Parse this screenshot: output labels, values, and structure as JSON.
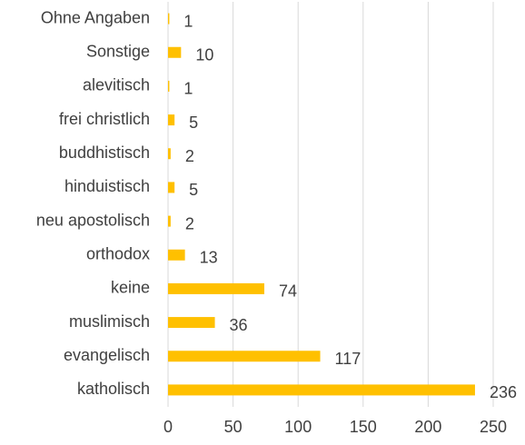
{
  "chart_data": {
    "type": "barh",
    "categories": [
      "Ohne Angaben",
      "Sonstige",
      "alevitisch",
      "frei christlich",
      "buddhistisch",
      "hinduistisch",
      "neu apostolisch",
      "orthodox",
      "keine",
      "muslimisch",
      "evangelisch",
      "katholisch"
    ],
    "values": [
      1,
      10,
      1,
      5,
      2,
      5,
      2,
      13,
      74,
      36,
      117,
      236
    ],
    "color": "#ffc000",
    "xlim": [
      0,
      250
    ],
    "xticks": [
      0,
      50,
      100,
      150,
      200,
      250
    ],
    "grid": true
  }
}
